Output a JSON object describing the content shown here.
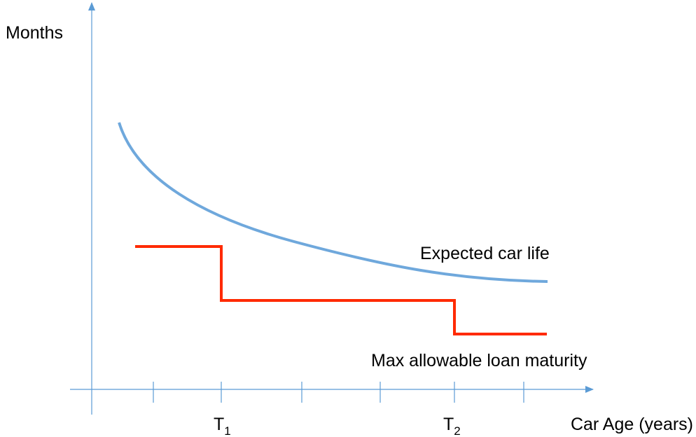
{
  "axes": {
    "y_label": "Months",
    "x_label": "Car Age (years)"
  },
  "curves": [
    {
      "label": "Expected car life"
    },
    {
      "label": "Max allowable loan maturity"
    }
  ],
  "x_ticks": [
    {
      "letter": "T",
      "subscript": "1"
    },
    {
      "letter": "T",
      "subscript": "2"
    }
  ]
}
